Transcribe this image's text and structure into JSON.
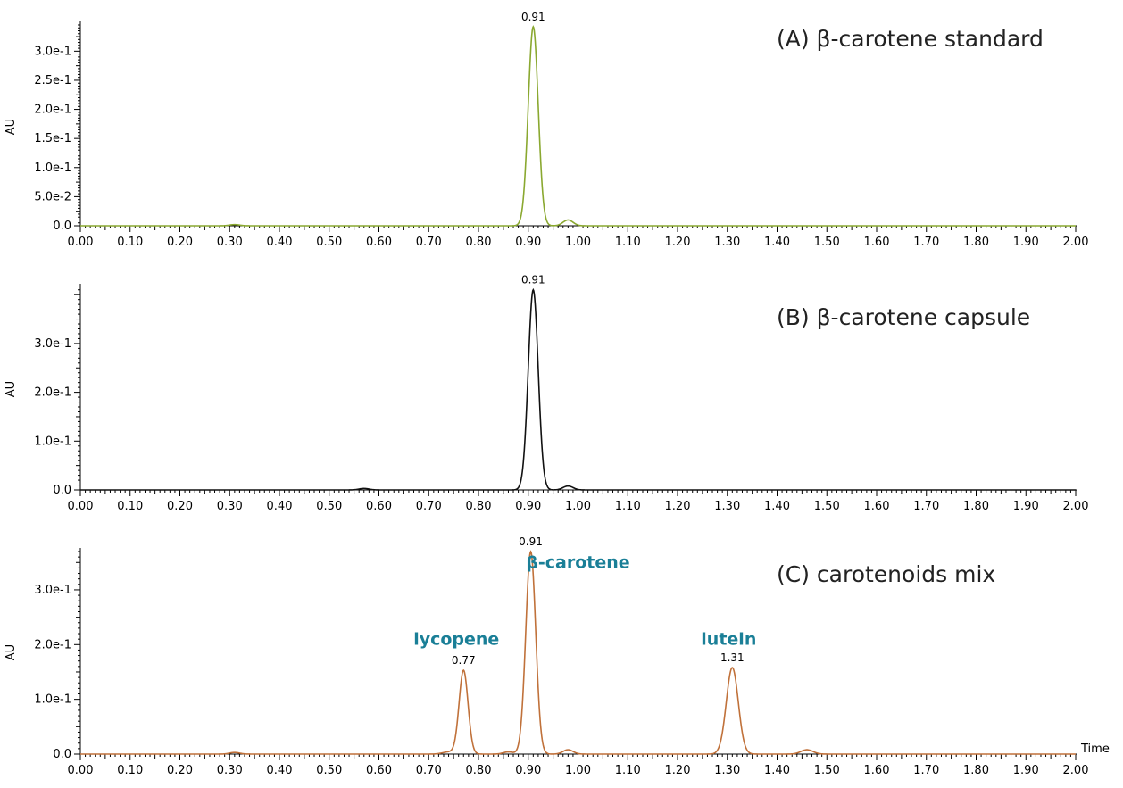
{
  "chart_data": [
    {
      "type": "line",
      "panel_label": "(A) β-carotene standard",
      "xlabel": "",
      "ylabel": "AU",
      "xlim": [
        0,
        2
      ],
      "ylim": [
        0,
        0.345
      ],
      "x_ticks": [
        "0.00",
        "0.10",
        "0.20",
        "0.30",
        "0.40",
        "0.50",
        "0.60",
        "0.70",
        "0.80",
        "0.90",
        "1.00",
        "1.10",
        "1.20",
        "1.30",
        "1.40",
        "1.50",
        "1.60",
        "1.70",
        "1.80",
        "1.90",
        "2.00"
      ],
      "y_ticks": [
        "0.0",
        "5.0e-2",
        "1.0e-1",
        "1.5e-1",
        "2.0e-1",
        "2.5e-1",
        "3.0e-1"
      ],
      "y_tick_values": [
        0,
        0.05,
        0.1,
        0.15,
        0.2,
        0.25,
        0.3
      ],
      "line_color": "#8aa830",
      "peaks": [
        {
          "rt": 0.91,
          "height": 0.342,
          "width": 0.01,
          "label": "0.91"
        },
        {
          "rt": 0.98,
          "height": 0.01,
          "width": 0.01
        },
        {
          "rt": 0.31,
          "height": 0.002,
          "width": 0.01
        }
      ],
      "annotations": []
    },
    {
      "type": "line",
      "panel_label": "(B) β-carotene capsule",
      "xlabel": "",
      "ylabel": "AU",
      "xlim": [
        0,
        2
      ],
      "ylim": [
        0,
        0.415
      ],
      "x_ticks": [
        "0.00",
        "0.10",
        "0.20",
        "0.30",
        "0.40",
        "0.50",
        "0.60",
        "0.70",
        "0.80",
        "0.90",
        "1.00",
        "1.10",
        "1.20",
        "1.30",
        "1.40",
        "1.50",
        "1.60",
        "1.70",
        "1.80",
        "1.90",
        "2.00"
      ],
      "y_ticks": [
        "0.0",
        "1.0e-1",
        "2.0e-1",
        "3.0e-1"
      ],
      "y_tick_values": [
        0,
        0.1,
        0.2,
        0.3
      ],
      "line_color": "#111111",
      "peaks": [
        {
          "rt": 0.91,
          "height": 0.41,
          "width": 0.01,
          "label": "0.91"
        },
        {
          "rt": 0.98,
          "height": 0.008,
          "width": 0.01
        },
        {
          "rt": 0.57,
          "height": 0.003,
          "width": 0.01
        }
      ],
      "annotations": []
    },
    {
      "type": "line",
      "panel_label": "(C) carotenoids mix",
      "xlabel": "Time",
      "ylabel": "AU",
      "xlim": [
        0,
        2
      ],
      "ylim": [
        0,
        0.37
      ],
      "x_ticks": [
        "0.00",
        "0.10",
        "0.20",
        "0.30",
        "0.40",
        "0.50",
        "0.60",
        "0.70",
        "0.80",
        "0.90",
        "1.00",
        "1.10",
        "1.20",
        "1.30",
        "1.40",
        "1.50",
        "1.60",
        "1.70",
        "1.80",
        "1.90",
        "2.00"
      ],
      "y_ticks": [
        "0.0",
        "1.0e-1",
        "2.0e-1",
        "3.0e-1"
      ],
      "y_tick_values": [
        0,
        0.1,
        0.2,
        0.3
      ],
      "line_color": "#c0713a",
      "peaks": [
        {
          "rt": 0.77,
          "height": 0.153,
          "width": 0.009,
          "label": "0.77"
        },
        {
          "rt": 0.905,
          "height": 0.37,
          "width": 0.01,
          "label": "0.91"
        },
        {
          "rt": 1.31,
          "height": 0.158,
          "width": 0.012,
          "label": "1.31"
        },
        {
          "rt": 0.98,
          "height": 0.008,
          "width": 0.01
        },
        {
          "rt": 1.46,
          "height": 0.008,
          "width": 0.012
        },
        {
          "rt": 0.31,
          "height": 0.003,
          "width": 0.01
        },
        {
          "rt": 0.74,
          "height": 0.004,
          "width": 0.012
        },
        {
          "rt": 0.86,
          "height": 0.004,
          "width": 0.01
        }
      ],
      "annotations": [
        {
          "text": "lycopene",
          "rt": 0.77,
          "y": 0.2
        },
        {
          "text": "β-carotene",
          "rt": 1.0,
          "y": 0.34
        },
        {
          "text": "lutein",
          "rt": 1.31,
          "y": 0.2
        }
      ]
    }
  ]
}
